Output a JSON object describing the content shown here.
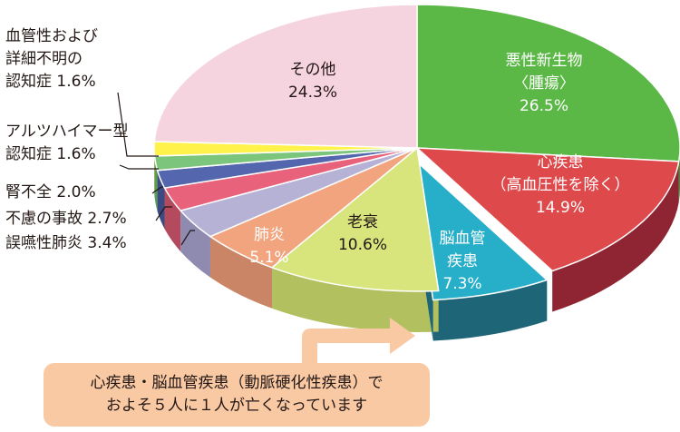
{
  "chart_data": {
    "type": "pie",
    "title": "",
    "slices": [
      {
        "label": "悪性新生物\n〈腫瘍〉",
        "value": 26.5,
        "value_label": "26.5%",
        "color": "#5bb846",
        "side_color": "#3f8f33",
        "label_color": "#ffffff"
      },
      {
        "label": "心疾患\n（高血圧性を除く）",
        "value": 14.9,
        "value_label": "14.9%",
        "color": "#de4a4c",
        "side_color": "#8f2533",
        "label_color": "#ffffff"
      },
      {
        "label": "脳血管\n疾患",
        "value": 7.3,
        "value_label": "7.3%",
        "color": "#27aec9",
        "side_color": "#1e6577",
        "label_color": "#ffffff",
        "exploded": true
      },
      {
        "label": "老衰",
        "value": 10.6,
        "value_label": "10.6%",
        "color": "#d7e57c",
        "side_color": "#b3c05f",
        "label_color": "#231815"
      },
      {
        "label": "肺炎",
        "value": 5.1,
        "value_label": "5.1%",
        "color": "#f2a47e",
        "side_color": "#c98565",
        "label_color": "#ffffff"
      },
      {
        "label": "誤嚥性肺炎",
        "value": 3.4,
        "value_label": "3.4%",
        "color": "#b6b2d6",
        "side_color": "#8e8ab0",
        "label_color": "#231815",
        "outside": true
      },
      {
        "label": "不慮の事故",
        "value": 2.7,
        "value_label": "2.7%",
        "color": "#e9627c",
        "side_color": "#b44a5e",
        "label_color": "#231815",
        "outside": true
      },
      {
        "label": "腎不全",
        "value": 2.0,
        "value_label": "2.0%",
        "color": "#5466ad",
        "side_color": "#3b4a83",
        "label_color": "#231815",
        "outside": true
      },
      {
        "label": "アルツハイマー型\n認知症",
        "value": 1.6,
        "value_label": "1.6%",
        "color": "#7cc57d",
        "side_color": "#5a9a5b",
        "label_color": "#231815",
        "outside": true
      },
      {
        "label": "血管性および\n詳細不明の\n認知症",
        "value": 1.6,
        "value_label": "1.6%",
        "color": "#fff24a",
        "side_color": "#cfc235",
        "label_color": "#231815",
        "outside": true
      },
      {
        "label": "その他",
        "value": 24.3,
        "value_label": "24.3%",
        "color": "#f5d3df",
        "side_color": "#d9b3c1",
        "label_color": "#231815"
      }
    ]
  },
  "callout": {
    "line1": "心疾患・脳血管疾患（動脈硬化性疾患）で",
    "line2": "およそ５人に１人が亡くなっています",
    "color": "#f9c9a4",
    "arrow_color": "#f9c9a4"
  }
}
